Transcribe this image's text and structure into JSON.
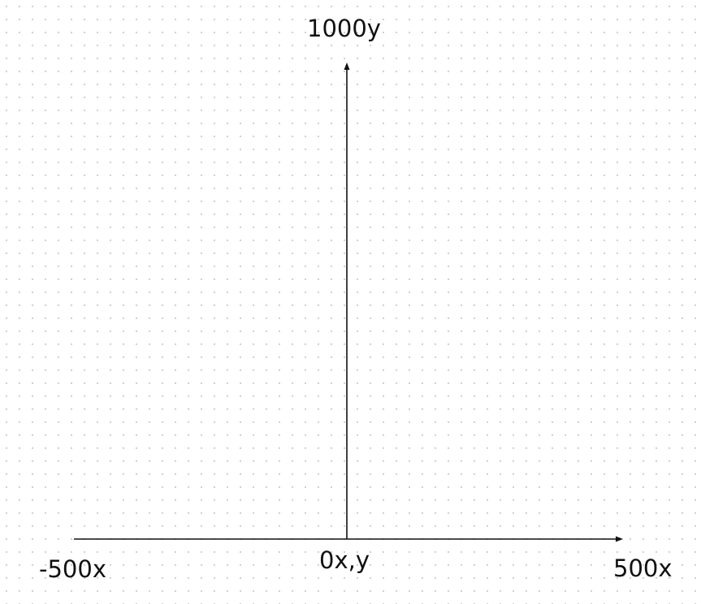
{
  "labels": {
    "y_max": "1000y",
    "origin": "0x,y",
    "x_min": "-500x",
    "x_max": "500x"
  },
  "colors": {
    "background": "#ffffff",
    "grid_dot": "#c9c9c9",
    "axis": "#111111"
  }
}
